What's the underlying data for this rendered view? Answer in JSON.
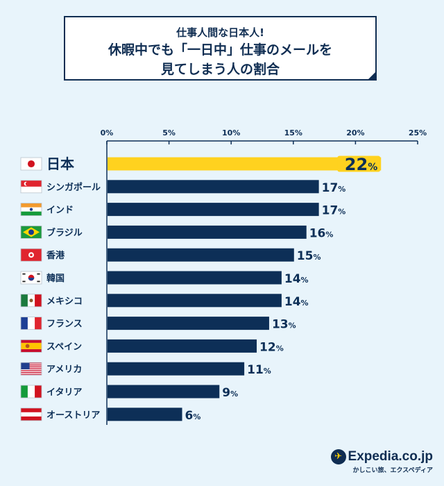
{
  "title": {
    "sub": "仕事人間な日本人!",
    "main_line1": "休暇中でも「一日中」仕事のメールを",
    "main_line2": "見てしまう人の割合"
  },
  "logo": {
    "name": "Expedia.co.jp",
    "tagline": "かしこい旅、エクスペディア",
    "icon": "airplane-globe-icon"
  },
  "colors": {
    "bar": "#0d2f57",
    "highlight": "#ffd21f",
    "axis": "#0d2f57",
    "background": "#e8f4fb"
  },
  "chart_data": {
    "type": "bar",
    "orientation": "horizontal",
    "categories": [
      "日本",
      "シンガポール",
      "インド",
      "ブラジル",
      "香港",
      "韓国",
      "メキシコ",
      "フランス",
      "スペイン",
      "アメリカ",
      "イタリア",
      "オーストリア"
    ],
    "values": [
      22,
      17,
      17,
      16,
      15,
      14,
      14,
      13,
      12,
      11,
      9,
      6
    ],
    "value_suffix": "%",
    "highlight_category": "日本",
    "flag_icons": [
      "japan-flag-icon",
      "singapore-flag-icon",
      "india-flag-icon",
      "brazil-flag-icon",
      "hongkong-flag-icon",
      "korea-flag-icon",
      "mexico-flag-icon",
      "france-flag-icon",
      "spain-flag-icon",
      "usa-flag-icon",
      "italy-flag-icon",
      "austria-flag-icon"
    ],
    "xlim": [
      0,
      25
    ],
    "xticks": [
      "0%",
      "5%",
      "10%",
      "15%",
      "20%",
      "25%"
    ],
    "axis_position": "top",
    "grid": false,
    "legend": "none"
  }
}
